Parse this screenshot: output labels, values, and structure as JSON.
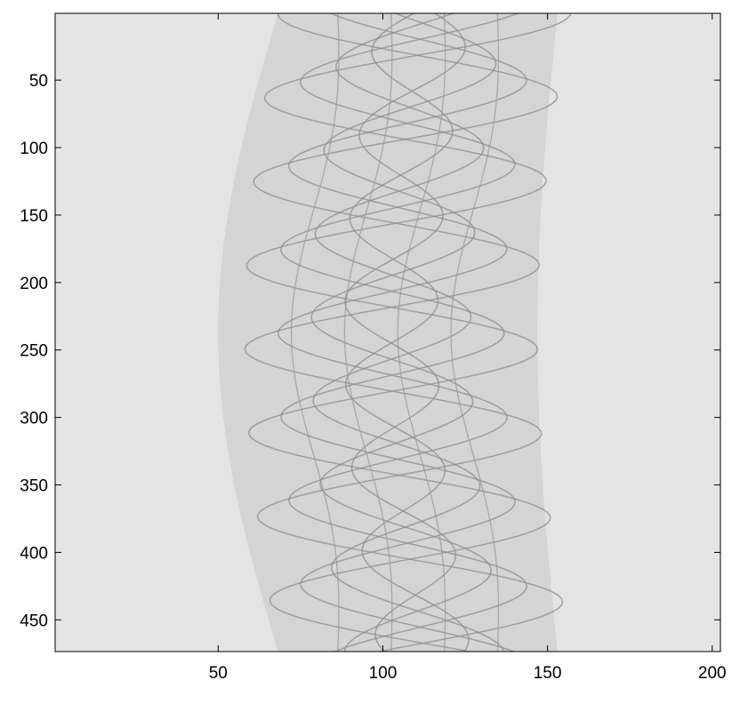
{
  "chart_data": {
    "type": "image",
    "xlim": [
      0.5,
      202.5
    ],
    "ylim": [
      0.5,
      473.5
    ],
    "y_reversed": true,
    "xticks": [
      50,
      100,
      150,
      200
    ],
    "yticks": [
      50,
      100,
      150,
      200,
      250,
      300,
      350,
      400,
      450
    ]
  }
}
